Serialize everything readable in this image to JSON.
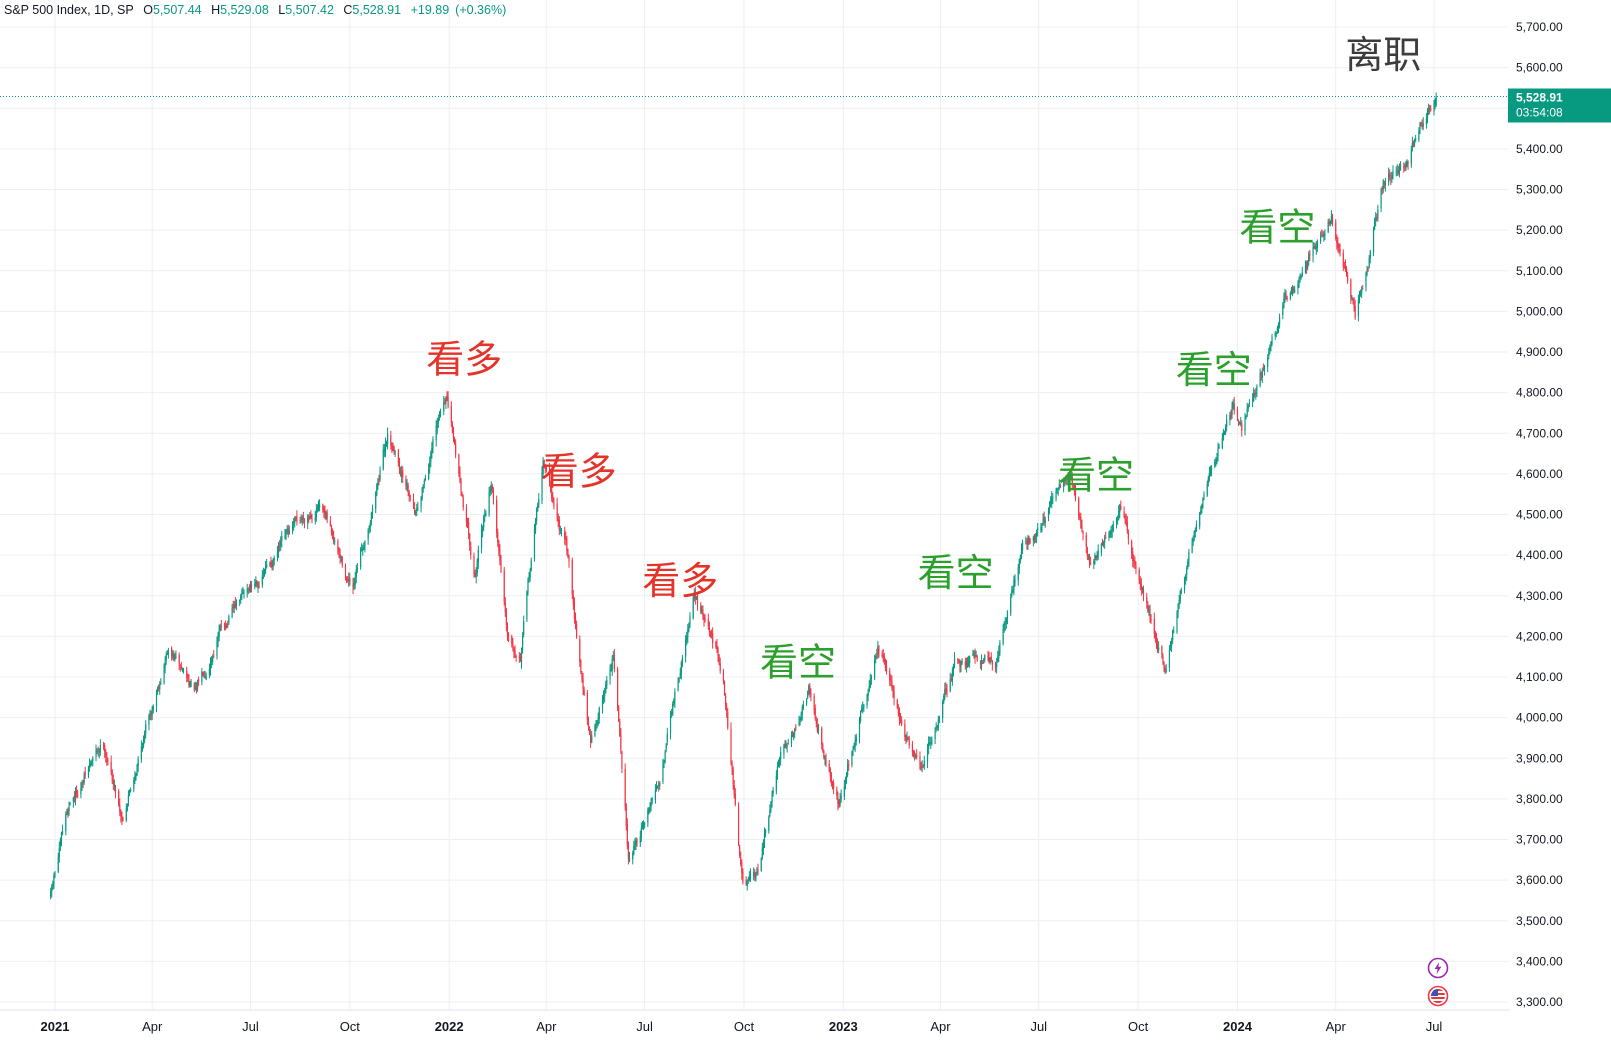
{
  "chart_data": {
    "type": "candlestick",
    "title": "S&P 500 Index, 1D, SP",
    "ohlc": {
      "open_label": "O",
      "open": "5,507.44",
      "high_label": "H",
      "high": "5,529.08",
      "low_label": "L",
      "low": "5,507.42",
      "close_label": "C",
      "close": "5,528.91",
      "change": "+19.89",
      "change_pct": "(+0.36%)"
    },
    "last_price_label": "5,528.91",
    "countdown_label": "03:54:08",
    "y_ticks": [
      "5,700.00",
      "5,600.00",
      "5,400.00",
      "5,300.00",
      "5,200.00",
      "5,100.00",
      "5,000.00",
      "4,900.00",
      "4,800.00",
      "4,700.00",
      "4,600.00",
      "4,500.00",
      "4,400.00",
      "4,300.00",
      "4,200.00",
      "4,100.00",
      "4,000.00",
      "3,900.00",
      "3,800.00",
      "3,700.00",
      "3,600.00",
      "3,500.00",
      "3,400.00",
      "3,300.00"
    ],
    "y_tick_values": [
      5700,
      5600,
      5400,
      5300,
      5200,
      5100,
      5000,
      4900,
      4800,
      4700,
      4600,
      4500,
      4400,
      4300,
      4200,
      4100,
      4000,
      3900,
      3800,
      3700,
      3600,
      3500,
      3400,
      3300
    ],
    "ylim": [
      3270,
      5750
    ],
    "x_ticks": [
      {
        "label": "2021",
        "date": "2021-01-01",
        "bold": true
      },
      {
        "label": "Apr",
        "date": "2021-04-01",
        "bold": false
      },
      {
        "label": "Jul",
        "date": "2021-07-01",
        "bold": false
      },
      {
        "label": "Oct",
        "date": "2021-10-01",
        "bold": false
      },
      {
        "label": "2022",
        "date": "2022-01-01",
        "bold": true
      },
      {
        "label": "Apr",
        "date": "2022-04-01",
        "bold": false
      },
      {
        "label": "Jul",
        "date": "2022-07-01",
        "bold": false
      },
      {
        "label": "Oct",
        "date": "2022-10-01",
        "bold": false
      },
      {
        "label": "2023",
        "date": "2023-01-01",
        "bold": true
      },
      {
        "label": "Apr",
        "date": "2023-04-01",
        "bold": false
      },
      {
        "label": "Jul",
        "date": "2023-07-01",
        "bold": false
      },
      {
        "label": "Oct",
        "date": "2023-10-01",
        "bold": false
      },
      {
        "label": "2024",
        "date": "2024-01-01",
        "bold": true
      },
      {
        "label": "Apr",
        "date": "2024-04-01",
        "bold": false
      },
      {
        "label": "Jul",
        "date": "2024-07-01",
        "bold": false
      }
    ],
    "series": [
      {
        "name": "S&P 500 Index",
        "approx_close_path": [
          [
            "2020-12-28",
            3560
          ],
          [
            "2021-01-15",
            3790
          ],
          [
            "2021-02-15",
            3940
          ],
          [
            "2021-03-04",
            3760
          ],
          [
            "2021-04-15",
            4170
          ],
          [
            "2021-05-12",
            4060
          ],
          [
            "2021-06-01",
            4210
          ],
          [
            "2021-07-01",
            4320
          ],
          [
            "2021-08-15",
            4470
          ],
          [
            "2021-09-01",
            4530
          ],
          [
            "2021-10-04",
            4300
          ],
          [
            "2021-11-05",
            4700
          ],
          [
            "2021-12-01",
            4520
          ],
          [
            "2021-12-29",
            4790
          ],
          [
            "2022-01-25",
            4360
          ],
          [
            "2022-02-09",
            4580
          ],
          [
            "2022-02-24",
            4220
          ],
          [
            "2022-03-08",
            4170
          ],
          [
            "2022-03-29",
            4630
          ],
          [
            "2022-04-21",
            4390
          ],
          [
            "2022-05-12",
            3930
          ],
          [
            "2022-06-02",
            4160
          ],
          [
            "2022-06-16",
            3670
          ],
          [
            "2022-07-12",
            3820
          ],
          [
            "2022-08-16",
            4300
          ],
          [
            "2022-09-12",
            4110
          ],
          [
            "2022-09-30",
            3590
          ],
          [
            "2022-10-12",
            3580
          ],
          [
            "2022-11-01",
            3860
          ],
          [
            "2022-11-30",
            4080
          ],
          [
            "2022-12-28",
            3790
          ],
          [
            "2023-02-02",
            4180
          ],
          [
            "2023-03-13",
            3850
          ],
          [
            "2023-04-15",
            4140
          ],
          [
            "2023-05-25",
            4150
          ],
          [
            "2023-06-15",
            4420
          ],
          [
            "2023-07-31",
            4590
          ],
          [
            "2023-08-18",
            4370
          ],
          [
            "2023-09-14",
            4510
          ],
          [
            "2023-10-27",
            4120
          ],
          [
            "2023-11-30",
            4560
          ],
          [
            "2023-12-28",
            4780
          ],
          [
            "2024-01-05",
            4700
          ],
          [
            "2024-02-15",
            5020
          ],
          [
            "2024-03-28",
            5250
          ],
          [
            "2024-04-19",
            4970
          ],
          [
            "2024-05-15",
            5310
          ],
          [
            "2024-06-05",
            5350
          ],
          [
            "2024-06-20",
            5470
          ],
          [
            "2024-07-03",
            5528
          ]
        ]
      }
    ],
    "annotations": [
      {
        "text": "看多",
        "date": "2022-01-15",
        "value": 4875,
        "color": "#e5332a"
      },
      {
        "text": "看多",
        "date": "2022-05-01",
        "value": 4600,
        "color": "#e5332a"
      },
      {
        "text": "看多",
        "date": "2022-08-03",
        "value": 4330,
        "color": "#e5332a"
      },
      {
        "text": "看空",
        "date": "2022-11-20",
        "value": 4130,
        "color": "#2ca02c"
      },
      {
        "text": "看空",
        "date": "2023-04-15",
        "value": 4350,
        "color": "#2ca02c"
      },
      {
        "text": "看空",
        "date": "2023-08-23",
        "value": 4590,
        "color": "#2ca02c"
      },
      {
        "text": "看空",
        "date": "2023-12-10",
        "value": 4850,
        "color": "#2ca02c"
      },
      {
        "text": "看空",
        "date": "2024-02-07",
        "value": 5200,
        "color": "#2ca02c"
      },
      {
        "text": "离职",
        "date": "2024-05-15",
        "value": 5625,
        "color": "#3c3c3c"
      }
    ],
    "colors": {
      "up": "#089981",
      "down": "#f23645",
      "grid": "#eeeff2",
      "axis_text": "#131722",
      "price_tag": "#089981"
    }
  },
  "toolbar": {
    "bolt_icon": "lightning-icon",
    "flag_icon": "us-flag-icon"
  }
}
